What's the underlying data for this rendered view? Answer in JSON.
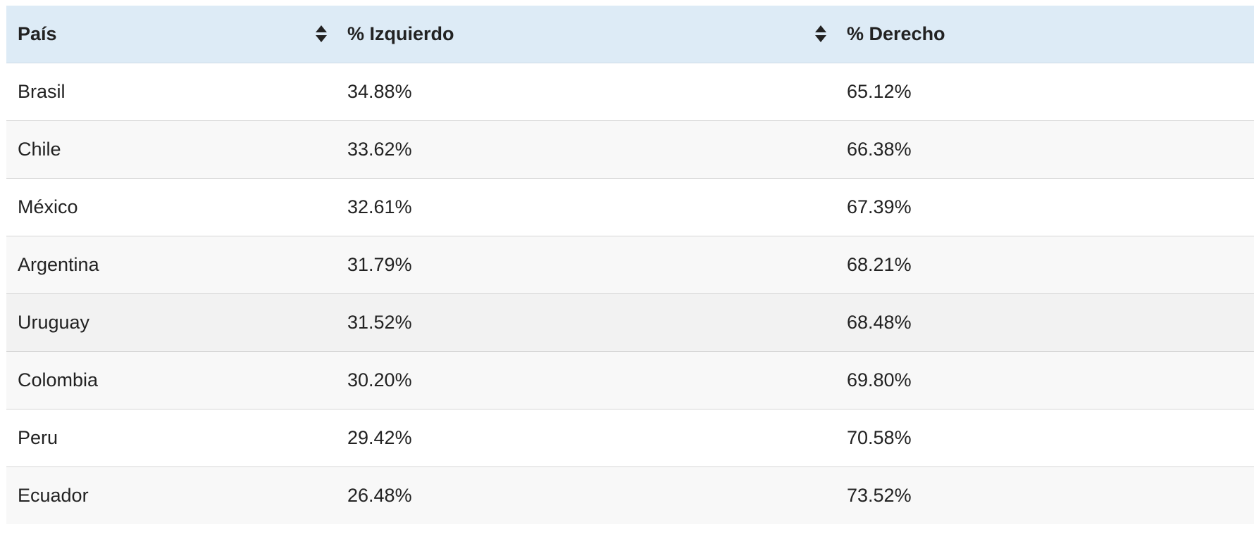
{
  "table": {
    "headers": [
      {
        "label": "País",
        "sort_icon": "sort-icon"
      },
      {
        "label": "% Izquierdo",
        "sort_icon": "sort-icon"
      },
      {
        "label": "% Derecho"
      }
    ],
    "rows": [
      {
        "pais": "Brasil",
        "izquierdo": "34.88%",
        "derecho": "65.12%"
      },
      {
        "pais": "Chile",
        "izquierdo": "33.62%",
        "derecho": "66.38%"
      },
      {
        "pais": "México",
        "izquierdo": "32.61%",
        "derecho": "67.39%"
      },
      {
        "pais": "Argentina",
        "izquierdo": "31.79%",
        "derecho": "68.21%"
      },
      {
        "pais": "Uruguay",
        "izquierdo": "31.52%",
        "derecho": "68.48%"
      },
      {
        "pais": "Colombia",
        "izquierdo": "30.20%",
        "derecho": "69.80%"
      },
      {
        "pais": "Peru",
        "izquierdo": "29.42%",
        "derecho": "70.58%"
      },
      {
        "pais": "Ecuador",
        "izquierdo": "26.48%",
        "derecho": "73.52%"
      }
    ]
  },
  "colors": {
    "header_bg": "#ddebf6",
    "row_alt_bg": "#f8f8f8",
    "row_hover_bg": "#f2f2f2",
    "divider": "#d6d6d6",
    "text": "#222222"
  }
}
